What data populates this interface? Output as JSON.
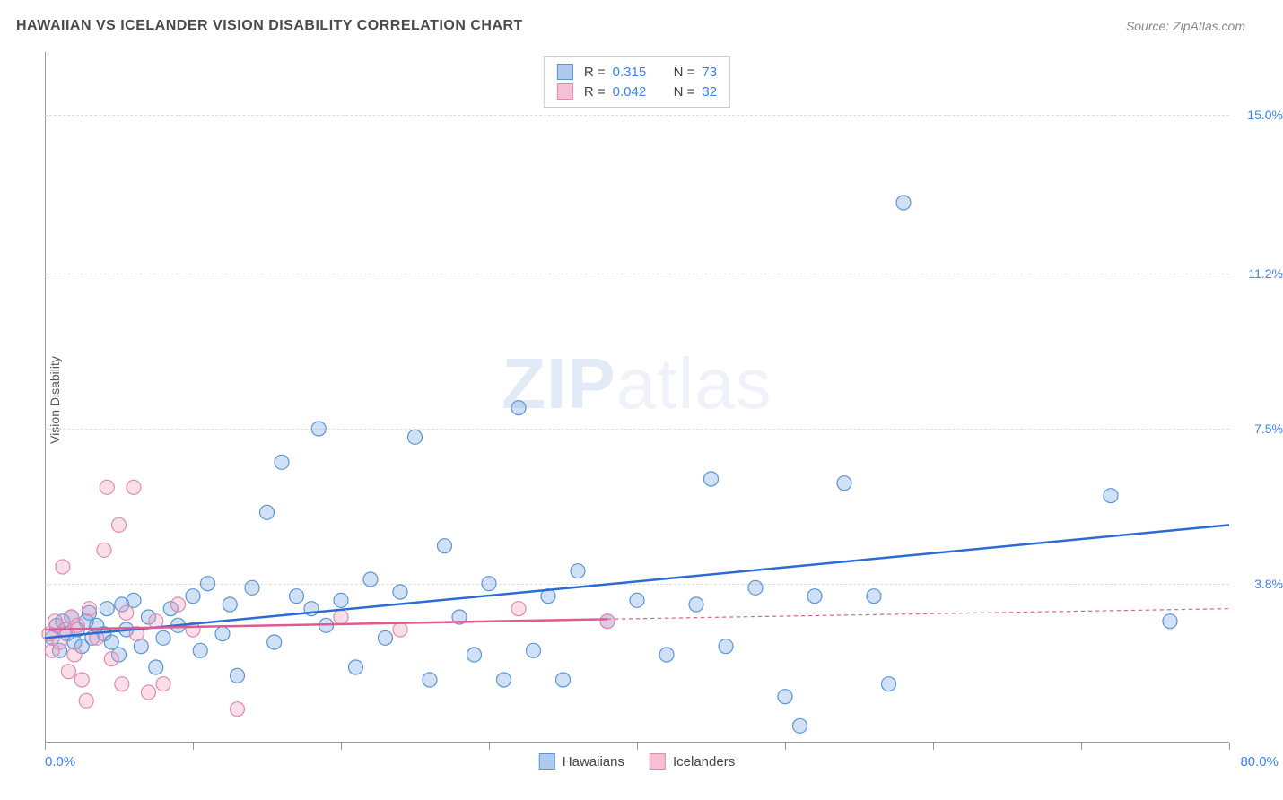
{
  "title": "HAWAIIAN VS ICELANDER VISION DISABILITY CORRELATION CHART",
  "source": "Source: ZipAtlas.com",
  "watermark_a": "ZIP",
  "watermark_b": "atlas",
  "y_axis_label": "Vision Disability",
  "chart": {
    "type": "scatter",
    "background_color": "#ffffff",
    "grid_color": "#dcdcdc",
    "axis_color": "#999999",
    "text_color": "#4a4a4a",
    "value_color": "#3b82f6",
    "xlim": [
      0,
      80
    ],
    "ylim": [
      0,
      16.5
    ],
    "x_tick_step": 10,
    "x_min_label": "0.0%",
    "x_max_label": "80.0%",
    "y_ticks": [
      {
        "v": 3.8,
        "label": "3.8%"
      },
      {
        "v": 7.5,
        "label": "7.5%"
      },
      {
        "v": 11.2,
        "label": "11.2%"
      },
      {
        "v": 15.0,
        "label": "15.0%"
      }
    ],
    "marker_radius": 8,
    "marker_stroke_width": 1.2,
    "trend_line_width": 2.5,
    "series": [
      {
        "name": "Hawaiians",
        "fill": "rgba(120,170,230,0.35)",
        "stroke": "#5a94d6",
        "swatch_fill": "#aecbef",
        "swatch_stroke": "#5a94d6",
        "line_color": "#2b6cd4",
        "r": "0.315",
        "n": "73",
        "trend": {
          "x1": 0,
          "y1": 2.5,
          "x2": 80,
          "y2": 5.2
        },
        "points": [
          [
            0.5,
            2.5
          ],
          [
            0.8,
            2.8
          ],
          [
            1.0,
            2.2
          ],
          [
            1.2,
            2.9
          ],
          [
            1.5,
            2.6
          ],
          [
            1.8,
            3.0
          ],
          [
            2.0,
            2.4
          ],
          [
            2.2,
            2.7
          ],
          [
            2.5,
            2.3
          ],
          [
            2.8,
            2.9
          ],
          [
            3.0,
            3.1
          ],
          [
            3.2,
            2.5
          ],
          [
            3.5,
            2.8
          ],
          [
            4.0,
            2.6
          ],
          [
            4.2,
            3.2
          ],
          [
            4.5,
            2.4
          ],
          [
            5.0,
            2.1
          ],
          [
            5.2,
            3.3
          ],
          [
            5.5,
            2.7
          ],
          [
            6.0,
            3.4
          ],
          [
            6.5,
            2.3
          ],
          [
            7.0,
            3.0
          ],
          [
            7.5,
            1.8
          ],
          [
            8.0,
            2.5
          ],
          [
            8.5,
            3.2
          ],
          [
            9.0,
            2.8
          ],
          [
            10.0,
            3.5
          ],
          [
            10.5,
            2.2
          ],
          [
            11.0,
            3.8
          ],
          [
            12.0,
            2.6
          ],
          [
            12.5,
            3.3
          ],
          [
            13.0,
            1.6
          ],
          [
            14.0,
            3.7
          ],
          [
            15.0,
            5.5
          ],
          [
            15.5,
            2.4
          ],
          [
            16.0,
            6.7
          ],
          [
            17.0,
            3.5
          ],
          [
            18.0,
            3.2
          ],
          [
            18.5,
            7.5
          ],
          [
            19.0,
            2.8
          ],
          [
            20.0,
            3.4
          ],
          [
            21.0,
            1.8
          ],
          [
            22.0,
            3.9
          ],
          [
            23.0,
            2.5
          ],
          [
            24.0,
            3.6
          ],
          [
            25.0,
            7.3
          ],
          [
            26.0,
            1.5
          ],
          [
            27.0,
            4.7
          ],
          [
            28.0,
            3.0
          ],
          [
            29.0,
            2.1
          ],
          [
            30.0,
            3.8
          ],
          [
            31.0,
            1.5
          ],
          [
            32.0,
            8.0
          ],
          [
            33.0,
            2.2
          ],
          [
            34.0,
            3.5
          ],
          [
            35.0,
            1.5
          ],
          [
            36.0,
            4.1
          ],
          [
            38.0,
            2.9
          ],
          [
            40.0,
            3.4
          ],
          [
            42.0,
            2.1
          ],
          [
            44.0,
            3.3
          ],
          [
            45.0,
            6.3
          ],
          [
            46.0,
            2.3
          ],
          [
            48.0,
            3.7
          ],
          [
            50.0,
            1.1
          ],
          [
            51.0,
            0.4
          ],
          [
            52.0,
            3.5
          ],
          [
            54.0,
            6.2
          ],
          [
            56.0,
            3.5
          ],
          [
            57.0,
            1.4
          ],
          [
            58.0,
            12.9
          ],
          [
            72.0,
            5.9
          ],
          [
            76.0,
            2.9
          ]
        ]
      },
      {
        "name": "Icelanders",
        "fill": "rgba(240,160,190,0.35)",
        "stroke": "#e28aad",
        "swatch_fill": "#f5c0d5",
        "swatch_stroke": "#e28aad",
        "line_color": "#e05a8f",
        "r": "0.042",
        "n": "32",
        "trend": {
          "x1": 0,
          "y1": 2.7,
          "x2": 38,
          "y2": 2.95,
          "x2_dash": 80,
          "y2_dash": 3.2
        },
        "points": [
          [
            0.3,
            2.6
          ],
          [
            0.5,
            2.2
          ],
          [
            0.7,
            2.9
          ],
          [
            1.0,
            2.4
          ],
          [
            1.2,
            4.2
          ],
          [
            1.4,
            2.7
          ],
          [
            1.6,
            1.7
          ],
          [
            1.8,
            3.0
          ],
          [
            2.0,
            2.1
          ],
          [
            2.2,
            2.8
          ],
          [
            2.5,
            1.5
          ],
          [
            2.8,
            1.0
          ],
          [
            3.0,
            3.2
          ],
          [
            3.5,
            2.5
          ],
          [
            4.0,
            4.6
          ],
          [
            4.2,
            6.1
          ],
          [
            4.5,
            2.0
          ],
          [
            5.0,
            5.2
          ],
          [
            5.2,
            1.4
          ],
          [
            5.5,
            3.1
          ],
          [
            6.0,
            6.1
          ],
          [
            6.2,
            2.6
          ],
          [
            7.0,
            1.2
          ],
          [
            7.5,
            2.9
          ],
          [
            8.0,
            1.4
          ],
          [
            9.0,
            3.3
          ],
          [
            10.0,
            2.7
          ],
          [
            13.0,
            0.8
          ],
          [
            20.0,
            3.0
          ],
          [
            24.0,
            2.7
          ],
          [
            32.0,
            3.2
          ],
          [
            38.0,
            2.9
          ]
        ]
      }
    ]
  },
  "legend_bottom": [
    {
      "label": "Hawaiians",
      "series": 0
    },
    {
      "label": "Icelanders",
      "series": 1
    }
  ]
}
